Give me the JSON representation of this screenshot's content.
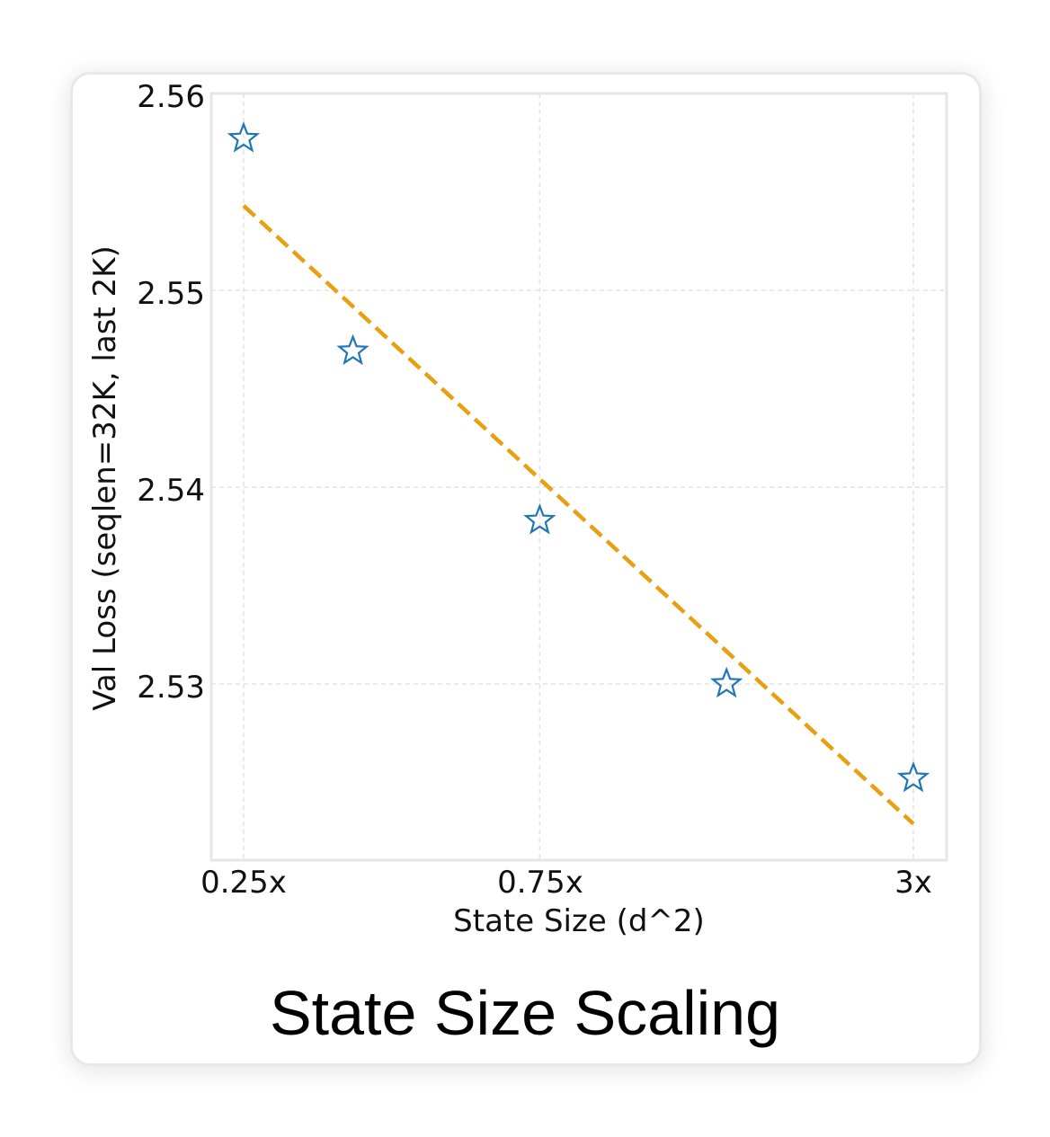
{
  "chart_data": {
    "type": "scatter",
    "title": "State Size Scaling",
    "xlabel": "State Size (d^2)",
    "ylabel": "Val Loss (seqlen=32K, last 2K)",
    "x_tick_labels": [
      "0.25x",
      "0.75x",
      "3x"
    ],
    "y_ticks": [
      "2.53",
      "2.54",
      "2.55",
      "2.56"
    ],
    "ylim": [
      2.5215,
      2.56
    ],
    "x_scale": "log",
    "grid": true,
    "series": [
      {
        "marker": "star-outline",
        "color": "#1f77b4",
        "points": [
          {
            "x": 0.25,
            "y": 2.5578
          },
          {
            "x": 0.375,
            "y": 2.547
          },
          {
            "x": 0.75,
            "y": 2.5384
          },
          {
            "x": 1.5,
            "y": 2.5301
          },
          {
            "x": 3.0,
            "y": 2.5253
          }
        ]
      }
    ],
    "fit_line": {
      "style": "dashed",
      "color": "#e8a010",
      "points": [
        {
          "x": 0.25,
          "y": 2.5543
        },
        {
          "x": 3.0,
          "y": 2.5229
        }
      ]
    }
  }
}
